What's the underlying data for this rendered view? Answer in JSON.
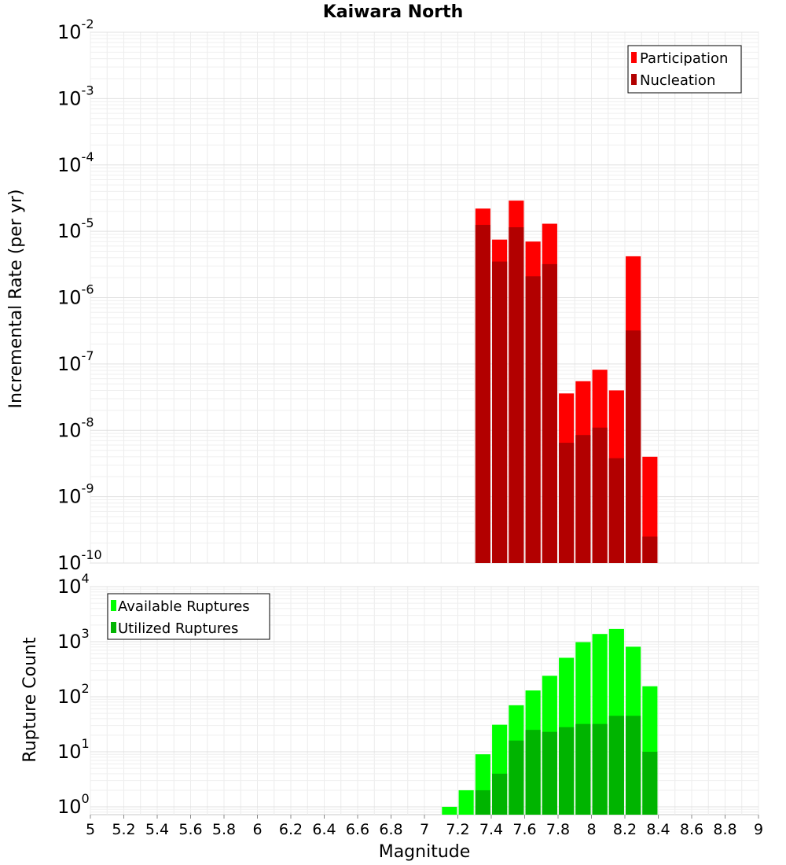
{
  "chart_data": [
    {
      "type": "bar",
      "title": "Kaiwara North",
      "xlabel": "",
      "ylabel": "Incremental Rate (per yr)",
      "yscale": "log",
      "ylim": [
        1e-10,
        0.01
      ],
      "xlim": [
        5,
        9
      ],
      "grid": true,
      "legend_position": "top-right",
      "y_tick_labels": [
        {
          "base": "10",
          "exp": "-10"
        },
        {
          "base": "10",
          "exp": "-9"
        },
        {
          "base": "10",
          "exp": "-8"
        },
        {
          "base": "10",
          "exp": "-7"
        },
        {
          "base": "10",
          "exp": "-6"
        },
        {
          "base": "10",
          "exp": "-5"
        },
        {
          "base": "10",
          "exp": "-4"
        },
        {
          "base": "10",
          "exp": "-3"
        },
        {
          "base": "10",
          "exp": "-2"
        }
      ],
      "x": [
        7.35,
        7.45,
        7.55,
        7.65,
        7.75,
        7.85,
        7.95,
        8.05,
        8.15,
        8.25,
        8.35
      ],
      "series": [
        {
          "name": "Participation",
          "color": "#ff0000",
          "values": [
            2.2e-05,
            7.5e-06,
            2.9e-05,
            7e-06,
            1.3e-05,
            3.6e-08,
            5.5e-08,
            8.2e-08,
            4e-08,
            4.2e-06,
            4e-09
          ]
        },
        {
          "name": "Nucleation",
          "color": "#b20000",
          "values": [
            1.25e-05,
            3.5e-06,
            1.15e-05,
            2.1e-06,
            3.2e-06,
            6.5e-09,
            8.5e-09,
            1.1e-08,
            3.8e-09,
            3.2e-07,
            2.5e-10
          ]
        }
      ]
    },
    {
      "type": "bar",
      "title": "",
      "xlabel": "Magnitude",
      "ylabel": "Rupture Count",
      "yscale": "log",
      "ylim": [
        0.72,
        10000
      ],
      "xlim": [
        5,
        9
      ],
      "grid": true,
      "legend_position": "top-left",
      "y_tick_labels": [
        {
          "base": "10",
          "exp": "0"
        },
        {
          "base": "10",
          "exp": "1"
        },
        {
          "base": "10",
          "exp": "2"
        },
        {
          "base": "10",
          "exp": "3"
        },
        {
          "base": "10",
          "exp": "4"
        }
      ],
      "x_tick_labels": [
        "5",
        "5.2",
        "5.4",
        "5.6",
        "5.8",
        "6",
        "6.2",
        "6.4",
        "6.6",
        "6.8",
        "7",
        "7.2",
        "7.4",
        "7.6",
        "7.8",
        "8",
        "8.2",
        "8.4",
        "8.6",
        "8.8",
        "9"
      ],
      "x": [
        7.15,
        7.25,
        7.35,
        7.45,
        7.55,
        7.65,
        7.75,
        7.85,
        7.95,
        8.05,
        8.15,
        8.25,
        8.35
      ],
      "series": [
        {
          "name": "Available Ruptures",
          "color": "#00ff00",
          "values": [
            1,
            2,
            9,
            31,
            70,
            130,
            240,
            510,
            980,
            1380,
            1700,
            810,
            155
          ]
        },
        {
          "name": "Utilized Ruptures",
          "color": "#00b400",
          "values": [
            0,
            0,
            2,
            4,
            16,
            25,
            23,
            28,
            32,
            32,
            45,
            45,
            10
          ]
        }
      ]
    }
  ]
}
